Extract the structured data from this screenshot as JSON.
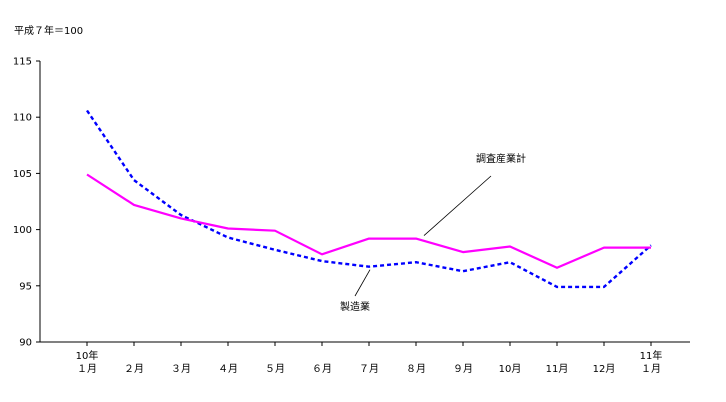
{
  "chart_data": {
    "type": "line",
    "unit_label": "平成７年＝100",
    "x_labels": [
      {
        "top": "10年",
        "bottom": "１月"
      },
      {
        "top": "",
        "bottom": "２月"
      },
      {
        "top": "",
        "bottom": "３月"
      },
      {
        "top": "",
        "bottom": "４月"
      },
      {
        "top": "",
        "bottom": "５月"
      },
      {
        "top": "",
        "bottom": "６月"
      },
      {
        "top": "",
        "bottom": "７月"
      },
      {
        "top": "",
        "bottom": "８月"
      },
      {
        "top": "",
        "bottom": "９月"
      },
      {
        "top": "",
        "bottom": "10月"
      },
      {
        "top": "",
        "bottom": "11月"
      },
      {
        "top": "",
        "bottom": "12月"
      },
      {
        "top": "11年",
        "bottom": "１月"
      }
    ],
    "ylim": [
      90,
      115
    ],
    "yticks": [
      90,
      95,
      100,
      105,
      110,
      115
    ],
    "grid": false,
    "series": [
      {
        "name": "調査産業計",
        "color": "#ff00ff",
        "line_style": "solid",
        "values": [
          104.9,
          102.2,
          101.0,
          100.1,
          99.9,
          97.8,
          99.2,
          99.2,
          98.0,
          98.5,
          96.6,
          98.4,
          98.4
        ]
      },
      {
        "name": "製造業",
        "color": "#0000ff",
        "line_style": "dotted",
        "values": [
          110.6,
          104.4,
          101.3,
          99.3,
          98.2,
          97.2,
          96.7,
          97.1,
          96.3,
          97.1,
          94.9,
          94.9,
          98.6
        ]
      }
    ]
  }
}
